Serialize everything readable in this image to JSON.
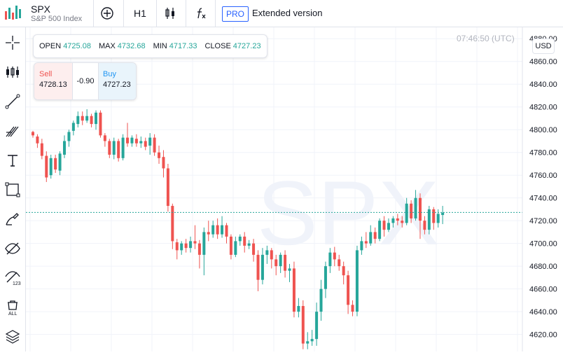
{
  "header": {
    "symbol": "SPX",
    "description": "S&P 500 Index",
    "timeframe": "H1",
    "pro_badge": "PRO",
    "extended_label": "Extended version"
  },
  "legend": {
    "open_label": "OPEN",
    "open_value": "4725.08",
    "max_label": "MAX",
    "max_value": "4732.68",
    "min_label": "MIN",
    "min_value": "4717.33",
    "close_label": "CLOSE",
    "close_value": "4727.23"
  },
  "trade": {
    "sell_label": "Sell",
    "sell_price": "4728.13",
    "spread": "-0.90",
    "buy_label": "Buy",
    "buy_price": "4727.23"
  },
  "chart_meta": {
    "time": "07:46:50 (UTC)",
    "currency": "USD",
    "watermark": "SPX",
    "up_color": "#26a69a",
    "down_color": "#ef5350"
  },
  "left_tools": [
    "crosshair-icon",
    "candles-icon",
    "trendline-icon",
    "fib-icon",
    "text-icon",
    "rectangle-icon",
    "brush-icon",
    "hide-drawings-icon",
    "hide-indicators-icon",
    "delete-all-icon",
    "layers-icon"
  ],
  "chart_data": {
    "type": "candlestick",
    "ylim": [
      4605,
      4890
    ],
    "y_ticks": [
      4620,
      4640,
      4660,
      4680,
      4700,
      4720,
      4740,
      4760,
      4780,
      4800,
      4820,
      4840,
      4860,
      4880
    ],
    "last_price": 4727.23,
    "candles": [
      [
        4798,
        4795,
        4799,
        4793
      ],
      [
        4794,
        4788,
        4796,
        4784
      ],
      [
        4788,
        4777,
        4792,
        4774
      ],
      [
        4777,
        4758,
        4781,
        4754
      ],
      [
        4760,
        4775,
        4778,
        4757
      ],
      [
        4775,
        4765,
        4778,
        4762
      ],
      [
        4764,
        4779,
        4781,
        4760
      ],
      [
        4778,
        4790,
        4795,
        4775
      ],
      [
        4790,
        4798,
        4800,
        4785
      ],
      [
        4799,
        4806,
        4808,
        4795
      ],
      [
        4805,
        4812,
        4816,
        4802
      ],
      [
        4812,
        4808,
        4816,
        4804
      ],
      [
        4808,
        4812,
        4818,
        4806
      ],
      [
        4812,
        4805,
        4814,
        4802
      ],
      [
        4805,
        4815,
        4817,
        4800
      ],
      [
        4815,
        4795,
        4817,
        4793
      ],
      [
        4795,
        4790,
        4797,
        4785
      ],
      [
        4790,
        4778,
        4792,
        4775
      ],
      [
        4778,
        4790,
        4793,
        4774
      ],
      [
        4790,
        4775,
        4792,
        4772
      ],
      [
        4775,
        4793,
        4796,
        4773
      ],
      [
        4793,
        4788,
        4806,
        4785
      ],
      [
        4788,
        4793,
        4795,
        4785
      ],
      [
        4792,
        4788,
        4796,
        4785
      ],
      [
        4788,
        4790,
        4794,
        4784
      ],
      [
        4790,
        4785,
        4793,
        4782
      ],
      [
        4786,
        4793,
        4797,
        4778
      ],
      [
        4793,
        4780,
        4796,
        4777
      ],
      [
        4780,
        4775,
        4786,
        4770
      ],
      [
        4776,
        4766,
        4782,
        4758
      ],
      [
        4766,
        4733,
        4770,
        4728
      ],
      [
        4733,
        4702,
        4735,
        4695
      ],
      [
        4701,
        4694,
        4704,
        4686
      ],
      [
        4694,
        4700,
        4702,
        4690
      ],
      [
        4700,
        4696,
        4704,
        4692
      ],
      [
        4696,
        4702,
        4706,
        4692
      ],
      [
        4702,
        4700,
        4716,
        4695
      ],
      [
        4700,
        4690,
        4703,
        4678
      ],
      [
        4690,
        4710,
        4714,
        4672
      ],
      [
        4710,
        4708,
        4720,
        4702
      ],
      [
        4708,
        4716,
        4720,
        4705
      ],
      [
        4716,
        4708,
        4722,
        4704
      ],
      [
        4708,
        4716,
        4724,
        4705
      ],
      [
        4716,
        4706,
        4718,
        4700
      ],
      [
        4706,
        4690,
        4708,
        4686
      ],
      [
        4690,
        4702,
        4706,
        4688
      ],
      [
        4702,
        4706,
        4708,
        4698
      ],
      [
        4706,
        4698,
        4710,
        4692
      ],
      [
        4698,
        4700,
        4703,
        4695
      ],
      [
        4700,
        4690,
        4704,
        4684
      ],
      [
        4690,
        4668,
        4694,
        4658
      ],
      [
        4668,
        4690,
        4696,
        4664
      ],
      [
        4690,
        4694,
        4698,
        4682
      ],
      [
        4694,
        4686,
        4696,
        4678
      ],
      [
        4686,
        4680,
        4690,
        4672
      ],
      [
        4680,
        4690,
        4692,
        4674
      ],
      [
        4690,
        4676,
        4694,
        4670
      ],
      [
        4676,
        4678,
        4682,
        4666
      ],
      [
        4678,
        4640,
        4684,
        4635
      ],
      [
        4640,
        4645,
        4652,
        4635
      ],
      [
        4645,
        4612,
        4650,
        4607
      ],
      [
        4612,
        4614,
        4622,
        4607
      ],
      [
        4614,
        4616,
        4624,
        4610
      ],
      [
        4616,
        4640,
        4648,
        4610
      ],
      [
        4640,
        4660,
        4668,
        4632
      ],
      [
        4660,
        4680,
        4684,
        4652
      ],
      [
        4680,
        4692,
        4696,
        4674
      ],
      [
        4692,
        4686,
        4697,
        4680
      ],
      [
        4686,
        4680,
        4690,
        4676
      ],
      [
        4680,
        4672,
        4684,
        4664
      ],
      [
        4672,
        4646,
        4676,
        4638
      ],
      [
        4646,
        4640,
        4650,
        4636
      ],
      [
        4640,
        4694,
        4698,
        4636
      ],
      [
        4694,
        4702,
        4706,
        4690
      ],
      [
        4702,
        4700,
        4710,
        4696
      ],
      [
        4700,
        4710,
        4716,
        4698
      ],
      [
        4710,
        4704,
        4714,
        4700
      ],
      [
        4704,
        4720,
        4722,
        4702
      ],
      [
        4720,
        4712,
        4724,
        4706
      ],
      [
        4712,
        4718,
        4722,
        4710
      ],
      [
        4718,
        4722,
        4724,
        4714
      ],
      [
        4722,
        4720,
        4726,
        4716
      ],
      [
        4720,
        4718,
        4724,
        4714
      ],
      [
        4718,
        4735,
        4740,
        4716
      ],
      [
        4735,
        4722,
        4738,
        4718
      ],
      [
        4722,
        4740,
        4747,
        4720
      ],
      [
        4740,
        4720,
        4744,
        4704
      ],
      [
        4720,
        4712,
        4724,
        4708
      ],
      [
        4712,
        4730,
        4733,
        4708
      ],
      [
        4730,
        4718,
        4732,
        4712
      ],
      [
        4718,
        4726,
        4730,
        4714
      ],
      [
        4725,
        4727,
        4733,
        4717
      ]
    ]
  }
}
